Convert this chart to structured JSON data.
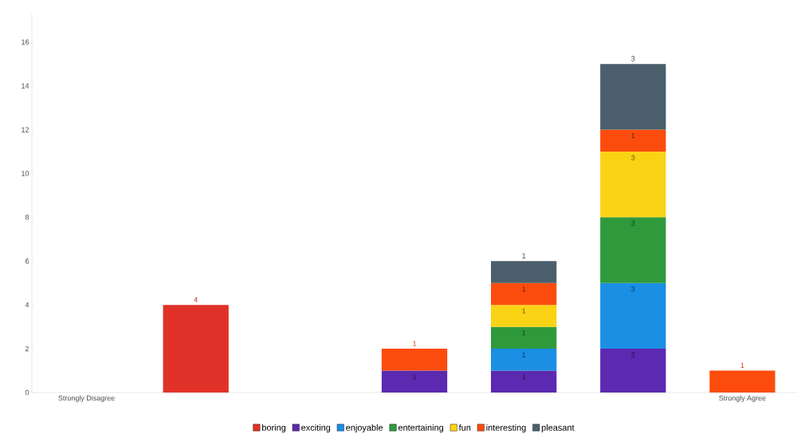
{
  "chart_data": {
    "type": "bar",
    "stacked": true,
    "data_labels": true,
    "legend": "bottom",
    "grid": false,
    "categories": [
      "Strongly Disagree",
      null,
      null,
      null,
      null,
      null,
      "Strongly Agree"
    ],
    "ylim": [
      0,
      17.3
    ],
    "yticks": [
      0,
      2,
      4,
      6,
      8,
      10,
      12,
      14,
      16
    ],
    "series": [
      {
        "name": "boring",
        "color": "#e03228",
        "values": [
          null,
          4,
          null,
          null,
          null,
          null,
          null
        ]
      },
      {
        "name": "exciting",
        "color": "#5b2ab0",
        "values": [
          null,
          null,
          null,
          1,
          1,
          2,
          null
        ]
      },
      {
        "name": "enjoyable",
        "color": "#1a8fe3",
        "values": [
          null,
          null,
          null,
          null,
          1,
          3,
          null
        ]
      },
      {
        "name": "entertaining",
        "color": "#2f9a3c",
        "values": [
          null,
          null,
          null,
          null,
          1,
          3,
          null
        ]
      },
      {
        "name": "fun",
        "color": "#fbd315",
        "values": [
          null,
          null,
          null,
          null,
          1,
          3,
          null
        ]
      },
      {
        "name": "interesting",
        "color": "#fb4c0e",
        "values": [
          null,
          null,
          null,
          1,
          1,
          1,
          1
        ]
      },
      {
        "name": "pleasant",
        "color": "#4a5f6b",
        "values": [
          null,
          null,
          null,
          null,
          1,
          3,
          null
        ]
      }
    ]
  }
}
